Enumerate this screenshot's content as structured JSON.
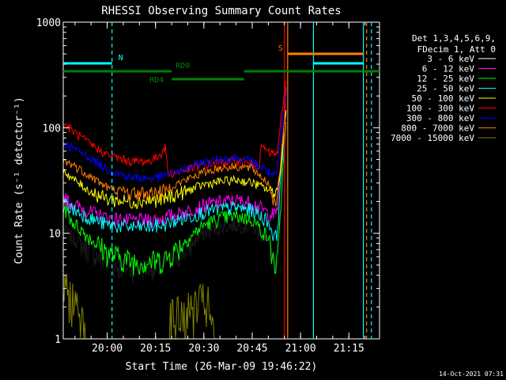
{
  "chart_data": {
    "type": "line",
    "title": "RHESSI Observing Summary Count Rates",
    "xlabel": "Start Time (26-Mar-09 19:46:22)",
    "ylabel": "Count Rate (s⁻¹ detector⁻¹)",
    "y_scale": "log",
    "ylim": [
      1,
      1000
    ],
    "xlim": [
      "19:46:22",
      "21:24:30"
    ],
    "y_ticks": [
      {
        "value": 1,
        "label": "1"
      },
      {
        "value": 10,
        "label": "10"
      },
      {
        "value": 100,
        "label": "100"
      },
      {
        "value": 1000,
        "label": "1000"
      }
    ],
    "x_ticks": [
      {
        "value": "20:00",
        "label": "20:00"
      },
      {
        "value": "20:15",
        "label": "20:15"
      },
      {
        "value": "20:30",
        "label": "20:30"
      },
      {
        "value": "20:45",
        "label": "20:45"
      },
      {
        "value": "21:00",
        "label": "21:00"
      },
      {
        "value": "21:15",
        "label": "21:15"
      }
    ],
    "legend_header": [
      "Det 1,3,4,5,6,9,",
      "FDecim 1, Att 0"
    ],
    "series": [
      {
        "name": "3 - 6 keV",
        "color": "#000000",
        "key": [
          [
            0,
            11
          ],
          [
            4,
            9
          ],
          [
            12,
            7
          ],
          [
            20,
            5
          ],
          [
            30,
            4.7
          ],
          [
            39,
            4.8
          ],
          [
            45,
            5
          ],
          [
            47,
            5.3
          ],
          [
            55,
            7
          ],
          [
            63,
            10
          ],
          [
            71,
            11.5
          ],
          [
            78,
            12
          ],
          [
            85,
            11.5
          ],
          [
            92,
            8.5
          ],
          [
            94,
            6
          ],
          [
            95,
            4.3
          ],
          [
            96,
            4.3
          ],
          [
            97,
            7
          ],
          [
            98,
            20
          ],
          [
            99,
            50
          ],
          [
            100,
            85
          ]
        ]
      },
      {
        "name": "6 - 12 keV",
        "color": "#ff00ff",
        "key": [
          [
            0,
            22
          ],
          [
            4,
            19
          ],
          [
            12,
            16
          ],
          [
            20,
            14
          ],
          [
            30,
            13.2
          ],
          [
            39,
            13.3
          ],
          [
            45,
            14
          ],
          [
            47,
            14.5
          ],
          [
            55,
            16
          ],
          [
            63,
            18.5
          ],
          [
            71,
            20
          ],
          [
            78,
            20.5
          ],
          [
            85,
            19.5
          ],
          [
            92,
            15.5
          ],
          [
            94,
            15
          ],
          [
            95,
            15
          ],
          [
            96,
            17
          ],
          [
            97,
            30
          ],
          [
            98,
            60
          ],
          [
            99,
            110
          ],
          [
            100,
            220
          ]
        ]
      },
      {
        "name": "12 - 25 keV",
        "color": "#00ff00",
        "key": [
          [
            0,
            18
          ],
          [
            4,
            13
          ],
          [
            12,
            9
          ],
          [
            20,
            6.5
          ],
          [
            30,
            5.5
          ],
          [
            39,
            5.4
          ],
          [
            45,
            5.6
          ],
          [
            47,
            6
          ],
          [
            55,
            8.5
          ],
          [
            63,
            12
          ],
          [
            71,
            14
          ],
          [
            78,
            14.5
          ],
          [
            85,
            13.5
          ],
          [
            92,
            9
          ],
          [
            94,
            6
          ],
          [
            95,
            5
          ],
          [
            96,
            5
          ],
          [
            97,
            10
          ],
          [
            98,
            25
          ],
          [
            99,
            60
          ],
          [
            100,
            100
          ]
        ]
      },
      {
        "name": "25 - 50 keV",
        "color": "#00ffff",
        "key": [
          [
            0,
            20
          ],
          [
            4,
            17
          ],
          [
            12,
            14
          ],
          [
            20,
            12
          ],
          [
            30,
            11.5
          ],
          [
            39,
            11.5
          ],
          [
            45,
            12
          ],
          [
            47,
            12.5
          ],
          [
            55,
            14
          ],
          [
            63,
            16
          ],
          [
            71,
            17
          ],
          [
            78,
            17.5
          ],
          [
            85,
            16.5
          ],
          [
            92,
            13
          ],
          [
            94,
            10
          ],
          [
            95,
            9
          ],
          [
            96,
            10
          ],
          [
            97,
            20
          ],
          [
            98,
            45
          ],
          [
            99,
            80
          ],
          [
            100,
            130
          ]
        ]
      },
      {
        "name": "50 - 100 keV",
        "color": "#ffff00",
        "key": [
          [
            0,
            40
          ],
          [
            4,
            33
          ],
          [
            12,
            25
          ],
          [
            20,
            21
          ],
          [
            30,
            20
          ],
          [
            39,
            20.5
          ],
          [
            45,
            21
          ],
          [
            47,
            22
          ],
          [
            55,
            25
          ],
          [
            63,
            29
          ],
          [
            71,
            31
          ],
          [
            78,
            32
          ],
          [
            85,
            30
          ],
          [
            92,
            26
          ],
          [
            94,
            25
          ],
          [
            95,
            25
          ],
          [
            96,
            26
          ],
          [
            97,
            30
          ],
          [
            98,
            50
          ],
          [
            99,
            90
          ],
          [
            100,
            140
          ]
        ]
      },
      {
        "name": "100 - 300 keV",
        "color": "#ff0000",
        "key": [
          [
            0,
            110
          ],
          [
            4,
            95
          ],
          [
            12,
            70
          ],
          [
            20,
            55
          ],
          [
            30,
            48
          ],
          [
            38,
            48
          ],
          [
            42,
            52
          ],
          [
            45,
            62
          ],
          [
            46,
            65
          ],
          [
            47,
            36
          ],
          [
            55,
            40
          ],
          [
            63,
            44
          ],
          [
            71,
            47
          ],
          [
            78,
            48
          ],
          [
            85,
            45
          ],
          [
            88,
            44
          ],
          [
            89,
            68
          ],
          [
            92,
            58
          ],
          [
            94,
            57
          ],
          [
            95,
            56
          ],
          [
            96,
            58
          ],
          [
            97,
            80
          ],
          [
            98,
            130
          ],
          [
            99,
            200
          ],
          [
            100,
            270
          ]
        ]
      },
      {
        "name": "300 - 800 keV",
        "color": "#0000ff",
        "key": [
          [
            0,
            70
          ],
          [
            4,
            65
          ],
          [
            12,
            52
          ],
          [
            20,
            40
          ],
          [
            30,
            34
          ],
          [
            39,
            33
          ],
          [
            45,
            35
          ],
          [
            47,
            36
          ],
          [
            55,
            41
          ],
          [
            63,
            47
          ],
          [
            71,
            51
          ],
          [
            78,
            52
          ],
          [
            85,
            48
          ],
          [
            92,
            38
          ],
          [
            94,
            35
          ],
          [
            95,
            35
          ],
          [
            96,
            37
          ],
          [
            97,
            60
          ],
          [
            98,
            100
          ],
          [
            99,
            140
          ],
          [
            100,
            200
          ]
        ]
      },
      {
        "name": "800 - 7000 keV",
        "color": "#ff8000",
        "key": [
          [
            0,
            48
          ],
          [
            4,
            45
          ],
          [
            12,
            35
          ],
          [
            20,
            27
          ],
          [
            30,
            24
          ],
          [
            39,
            24
          ],
          [
            45,
            25
          ],
          [
            47,
            27
          ],
          [
            55,
            32
          ],
          [
            63,
            38
          ],
          [
            71,
            42
          ],
          [
            78,
            43
          ],
          [
            85,
            41
          ],
          [
            92,
            30
          ],
          [
            94,
            22
          ],
          [
            95,
            20
          ],
          [
            96,
            22
          ],
          [
            97,
            35
          ],
          [
            98,
            60
          ],
          [
            99,
            90
          ],
          [
            100,
            120
          ]
        ]
      },
      {
        "name": "7000 - 15000 keV",
        "color": "#808000",
        "key": [
          [
            0,
            2.5
          ],
          [
            4,
            2.2
          ],
          [
            6,
            1.7
          ],
          [
            9,
            1.5
          ],
          [
            10,
            1
          ],
          [
            47,
            1
          ],
          [
            48,
            1.4
          ],
          [
            55,
            1.5
          ],
          [
            60,
            1.8
          ],
          [
            63,
            2
          ],
          [
            65,
            1.8
          ],
          [
            66,
            1.3
          ],
          [
            68,
            1
          ],
          [
            100,
            1
          ]
        ]
      }
    ],
    "state_bars": [
      {
        "label": "N",
        "color": "#00ffff",
        "level": 0.87,
        "segments": [
          [
            "19:46:22",
            "20:01:30"
          ],
          [
            "21:04:00",
            "21:19:30"
          ]
        ]
      },
      {
        "label": "S",
        "color": "#ff8000",
        "level": 0.9,
        "segments": [
          [
            "20:56:00",
            "21:19:30"
          ]
        ]
      },
      {
        "label": "RD0",
        "color": "#008000",
        "level": 0.845,
        "segments": [
          [
            "19:46:22",
            "20:20:00"
          ],
          [
            "20:42:30",
            "21:24:30"
          ]
        ]
      },
      {
        "label": "RD4",
        "color": "#008000",
        "level": 0.82,
        "segments": [
          [
            "20:20:00",
            "20:42:30"
          ]
        ]
      }
    ],
    "vertical_markers": [
      {
        "time": "20:01:30",
        "color": "#00ffff",
        "style": "dashed"
      },
      {
        "time": "21:04:00",
        "color": "#00ffff",
        "style": "solid"
      },
      {
        "time": "21:19:30",
        "color": "#00ffff",
        "style": "solid"
      },
      {
        "time": "20:56:00",
        "color": "#ff8000",
        "style": "solid"
      },
      {
        "time": "21:20:30",
        "color": "#ff8000",
        "style": "dashed"
      },
      {
        "time": "21:22:00",
        "color": "#00ffff",
        "style": "dashed"
      },
      {
        "time": "20:55:00",
        "color": "#ff0000",
        "style": "solid"
      }
    ],
    "legend_position": "right",
    "grid": false
  },
  "footer_date": "14-Oct-2021 07:31"
}
